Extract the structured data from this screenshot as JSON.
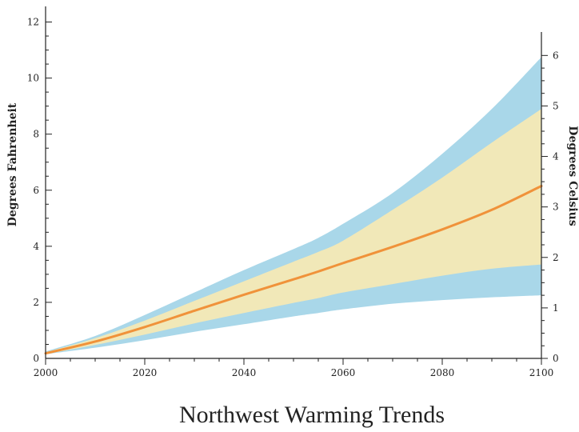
{
  "chart_data": {
    "type": "area",
    "title": "Northwest Warming Trends",
    "xlabel": "",
    "ylabel": "Degrees Fahrenheit",
    "y2label": "Degrees Celsius",
    "xlim": [
      2000,
      2100
    ],
    "ylim": [
      0,
      12.5
    ],
    "y2lim": [
      0,
      6.94
    ],
    "xticks": [
      2000,
      2020,
      2040,
      2060,
      2080,
      2100
    ],
    "yticks": [
      0,
      2,
      4,
      6,
      8,
      10,
      12
    ],
    "y2ticks": [
      0,
      1,
      2,
      3,
      4,
      5,
      6
    ],
    "grid": false,
    "x": [
      2000,
      2010,
      2020,
      2030,
      2040,
      2050,
      2055,
      2060,
      2070,
      2080,
      2090,
      2100
    ],
    "series": [
      {
        "kind": "band",
        "color": "#a9d7e9",
        "lower": [
          0.15,
          0.38,
          0.65,
          0.95,
          1.22,
          1.5,
          1.62,
          1.75,
          1.95,
          2.08,
          2.18,
          2.25
        ],
        "upper": [
          0.25,
          0.8,
          1.55,
          2.35,
          3.15,
          3.9,
          4.3,
          4.8,
          5.9,
          7.3,
          8.9,
          10.75
        ]
      },
      {
        "kind": "band",
        "color": "#f1e8b8",
        "lower": [
          0.15,
          0.48,
          0.85,
          1.25,
          1.62,
          1.98,
          2.15,
          2.35,
          2.65,
          2.95,
          3.2,
          3.35
        ],
        "upper": [
          0.22,
          0.72,
          1.35,
          2.05,
          2.75,
          3.45,
          3.8,
          4.2,
          5.3,
          6.45,
          7.7,
          8.9
        ]
      },
      {
        "kind": "line",
        "color": "#f0923a",
        "values": [
          0.18,
          0.6,
          1.12,
          1.7,
          2.27,
          2.82,
          3.1,
          3.4,
          3.98,
          4.6,
          5.3,
          6.15
        ]
      }
    ]
  }
}
